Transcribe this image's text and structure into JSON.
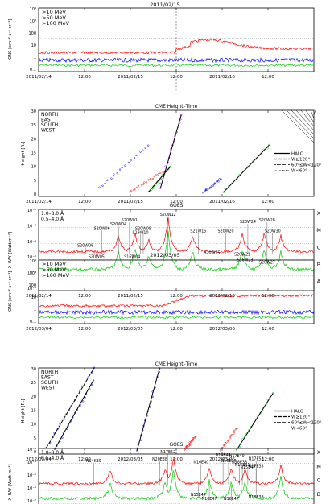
{
  "colors": {
    "red": "#ff0000",
    "blue": "#0000ff",
    "green": "#00cc00",
    "purple": "#9900cc",
    "black": "#000000"
  },
  "sections": [
    {
      "date_title": "2011/02/15",
      "x_ticks": [
        "2011/02/14",
        "12:00",
        "2011/02/15",
        "12:00",
        "2011/02/16",
        "12:00"
      ],
      "proton_legend": [
        ">10 MeV",
        ">50 MeV",
        ">100 MeV"
      ],
      "proton_ylabel": "IONS [cm⁻² s⁻¹ sr⁻¹]",
      "proton_yticks": [
        "10⁴",
        "10³",
        "100",
        "10",
        "1",
        "0.1"
      ],
      "cme_title": "CME Height–Time",
      "cme_legend": [
        "NORTH",
        "EAST",
        "SOUTH",
        "WEST"
      ],
      "cme_width_legend": [
        "HALO",
        "W≥120°",
        "60°≤W<120°",
        "W<60°"
      ],
      "cme_ylabel": "Height [Rₛ]",
      "cme_yticks": [
        "30",
        "25",
        "20",
        "15",
        "10",
        "5",
        "0"
      ],
      "goes_title": "GOES",
      "goes_legend": [
        "1.0–8.0 Å",
        "0.5–4.0 Å"
      ],
      "goes_ylabel": "X–RAY [Watt m⁻²]",
      "goes_yticks": [
        "10⁻³",
        "10⁻⁴",
        "10⁻⁵",
        "10⁻⁶",
        "10⁻⁷",
        "10⁻⁸"
      ],
      "goes_classes": [
        "X",
        "M",
        "C",
        "B",
        "A"
      ],
      "flare_labels": [
        "S20W12",
        "S20W04",
        "S20W01",
        "S20W06",
        "S19W10",
        "S20W08",
        "S21W15",
        "S20W20",
        "S20W24",
        "S20W28",
        "S20W30",
        "S20W06",
        "S20W05",
        "S16W04",
        "S20W15",
        "S20W21",
        "S16W23",
        "S20W27"
      ]
    },
    {
      "date_title": "2012/03/05",
      "x_ticks": [
        "2012/03/04",
        "12:00",
        "2012/03/05",
        "12:00",
        "2012/03/06",
        "12:00"
      ],
      "proton_legend": [
        ">10 MeV",
        ">50 MeV",
        ">100 MeV"
      ],
      "proton_ylabel": "IONS [cm⁻² s⁻¹ sr⁻¹]",
      "proton_yticks": [
        "10⁴",
        "10³",
        "100",
        "10",
        "1",
        "0.1"
      ],
      "cme_title": "CME Height–Time",
      "cme_legend": [
        "NORTH",
        "EAST",
        "SOUTH",
        "WEST"
      ],
      "cme_width_legend": [
        "HALO",
        "W≥120°",
        "60°≤W<120°",
        "W<60°"
      ],
      "cme_ylabel": "Height [Rₛ]",
      "cme_yticks": [
        "30",
        "25",
        "20",
        "15",
        "10",
        "5",
        "0"
      ],
      "goes_title": "GOES",
      "goes_legend": [
        "1.0–8.0 Å",
        "0.5–4.0 Å"
      ],
      "goes_ylabel": "X–RAY [Watt m⁻²]",
      "goes_yticks": [
        "10⁻³",
        "10⁻⁴",
        "10⁻⁵",
        "10⁻⁶",
        "10⁻⁷",
        "10⁻⁸"
      ],
      "goes_classes": [
        "X",
        "M",
        "C",
        "B",
        "A"
      ],
      "flare_labels": [
        "N14K39",
        "N17E52",
        "N20E38",
        "N16E40",
        "N14E44",
        "N16E34",
        "N17E40",
        "N18E38",
        "N17E52",
        "N15E47",
        "N16E41",
        "N17E33",
        "N15E47",
        "N16E47",
        "N16E47",
        "N18E38"
      ]
    }
  ],
  "chart_data": [
    {
      "type": "line",
      "title": "2011/02/15 protons",
      "series": [
        {
          "name": ">10 MeV",
          "values": [
            0.22,
            0.22,
            0.23,
            0.23,
            0.25,
            0.4,
            1.6,
            2.0,
            1.5,
            1.1,
            0.8,
            0.7
          ]
        },
        {
          "name": ">50 MeV",
          "values": [
            0.11,
            0.11,
            0.11,
            0.11,
            0.12,
            0.13,
            0.15,
            0.14,
            0.13,
            0.12,
            0.12,
            0.12
          ]
        },
        {
          "name": ">100 MeV",
          "values": [
            0.08,
            0.08,
            0.08,
            0.08,
            0.08,
            0.08,
            0.08,
            0.08,
            0.08,
            0.08,
            0.08,
            0.08
          ]
        }
      ]
    },
    {
      "type": "scatter",
      "title": "2011/02/15 CME height-time"
    },
    {
      "type": "line",
      "title": "2011/02/15 GOES",
      "series": [
        {
          "name": "1.0–8.0 Å"
        },
        {
          "name": "0.5–4.0 Å"
        }
      ]
    },
    {
      "type": "line",
      "title": "2012/03/05 protons",
      "series": [
        {
          "name": ">10 MeV",
          "values": [
            0.25,
            0.25,
            0.25,
            0.25,
            0.26,
            1.5,
            2.2,
            2.5,
            2.4,
            2.3,
            2.2,
            2.1
          ]
        },
        {
          "name": ">50 MeV",
          "values": [
            0.12,
            0.12,
            0.12,
            0.12,
            0.12,
            0.12,
            0.12,
            0.12,
            0.12,
            0.13,
            0.13,
            0.13
          ]
        },
        {
          "name": ">100 MeV",
          "values": [
            0.08,
            0.08,
            0.08,
            0.08,
            0.08,
            0.08,
            0.08,
            0.08,
            0.08,
            0.08,
            0.08,
            0.08
          ]
        }
      ]
    },
    {
      "type": "scatter",
      "title": "2012/03/05 CME height-time"
    },
    {
      "type": "line",
      "title": "2012/03/05 GOES",
      "series": [
        {
          "name": "1.0–8.0 Å"
        },
        {
          "name": "0.5–4.0 Å"
        }
      ]
    }
  ]
}
